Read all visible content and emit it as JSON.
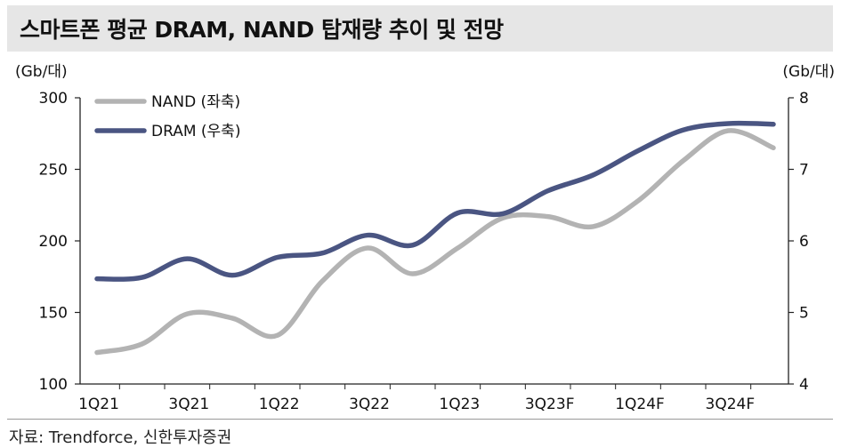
{
  "title": "스마트폰 평균 DRAM, NAND 탑재량 추이 및 전망",
  "source": "자료: Trendforce, 신한투자증권",
  "chart_data": {
    "type": "line",
    "title": "스마트폰 평균 DRAM, NAND 탑재량 추이 및 전망",
    "x_categories": [
      "1Q21",
      "2Q21",
      "3Q21",
      "4Q21",
      "1Q22",
      "2Q22",
      "3Q22",
      "4Q22",
      "1Q23",
      "2Q23",
      "3Q23F",
      "4Q23F",
      "1Q24F",
      "2Q24F",
      "3Q24F",
      "4Q24F"
    ],
    "x_tick_labels": [
      "1Q21",
      "3Q21",
      "1Q22",
      "3Q22",
      "1Q23",
      "3Q23F",
      "1Q24F",
      "3Q24F"
    ],
    "y_left": {
      "label": "(Gb/대)",
      "min": 100,
      "max": 300,
      "ticks": [
        "100",
        "150",
        "200",
        "250",
        "300"
      ]
    },
    "y_right": {
      "label": "(Gb/대)",
      "min": 4,
      "max": 8,
      "ticks": [
        "4",
        "5",
        "6",
        "7",
        "8"
      ]
    },
    "series": [
      {
        "name": "NAND (좌축)",
        "axis": "left",
        "color": "#b3b3b3",
        "values": [
          122,
          128,
          149,
          146,
          134,
          172,
          195,
          177,
          195,
          216,
          217,
          210,
          228,
          256,
          277,
          265
        ]
      },
      {
        "name": "DRAM (우축)",
        "axis": "right",
        "color": "#4a5582",
        "values": [
          5.47,
          5.49,
          5.75,
          5.52,
          5.77,
          5.83,
          6.08,
          5.94,
          6.39,
          6.38,
          6.7,
          6.92,
          7.26,
          7.55,
          7.64,
          7.63
        ]
      }
    ],
    "legend_position": "top-left",
    "grid": false
  }
}
